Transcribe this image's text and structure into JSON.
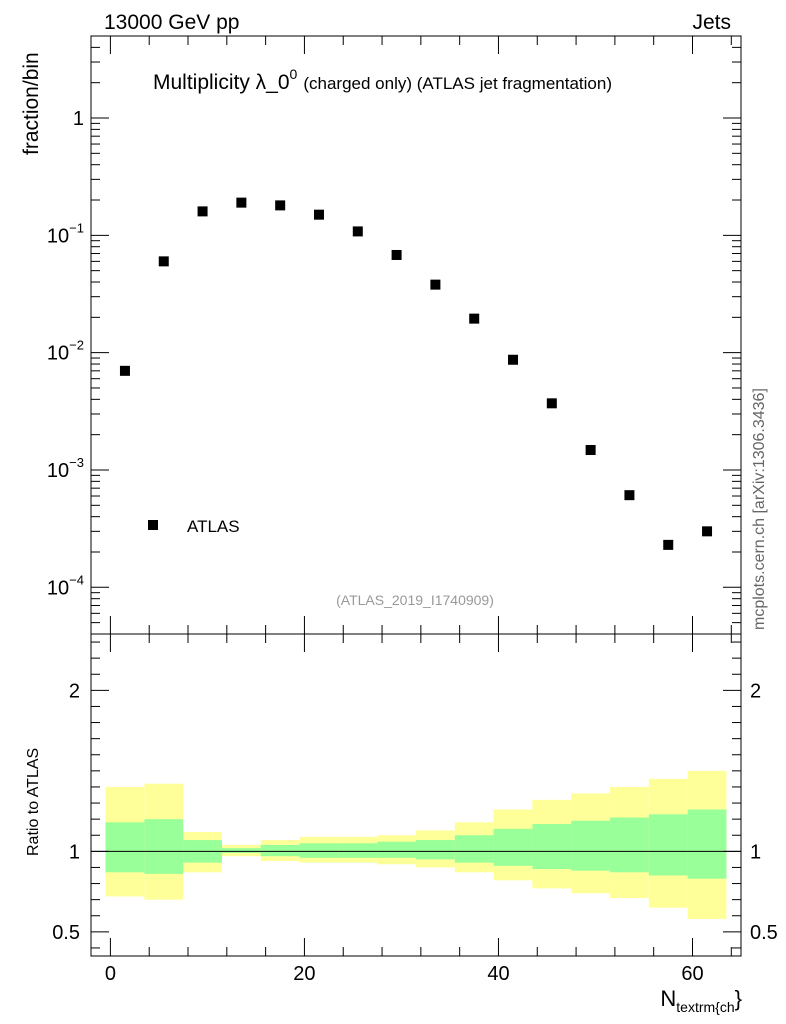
{
  "header": {
    "left_label": "13000 GeV pp",
    "right_label": "Jets",
    "side_label": "mcplots.cern.ch [arXiv:1306.3436]"
  },
  "chart_data": [
    {
      "type": "scatter",
      "title": {
        "main": "Multiplicity λ_0",
        "superscript": "0",
        "suffix": "(charged only) (ATLAS jet fragmentation)"
      },
      "ylabel": "fraction/bin",
      "y_scale": "log",
      "ylim": [
        4e-05,
        5
      ],
      "xlim": [
        -2,
        65
      ],
      "y_ticks": [
        {
          "value": 1,
          "base": "1",
          "exp": ""
        },
        {
          "value": 0.1,
          "base": "10",
          "exp": "−1"
        },
        {
          "value": 0.01,
          "base": "10",
          "exp": "−2"
        },
        {
          "value": 0.001,
          "base": "10",
          "exp": "−3"
        },
        {
          "value": 0.0001,
          "base": "10",
          "exp": "−4"
        }
      ],
      "legend": {
        "position": "bottom-left",
        "entries": [
          "ATLAS"
        ]
      },
      "series": [
        {
          "name": "ATLAS",
          "x": [
            1.5,
            5.5,
            9.5,
            13.5,
            17.5,
            21.5,
            25.5,
            29.5,
            33.5,
            37.5,
            41.5,
            45.5,
            49.5,
            53.5,
            57.5,
            61.5
          ],
          "y": [
            0.007,
            0.06,
            0.16,
            0.19,
            0.18,
            0.15,
            0.108,
            0.068,
            0.038,
            0.0195,
            0.0087,
            0.0037,
            0.00148,
            0.00061,
            0.00023,
            0.0003
          ]
        }
      ],
      "annotation": "(ATLAS_2019_I1740909)"
    },
    {
      "type": "area",
      "ylabel": "Ratio to ATLAS",
      "ylim": [
        0.35,
        2.35
      ],
      "xlim": [
        -2,
        65
      ],
      "x_ticks": [
        0,
        20,
        40,
        60
      ],
      "y_ticks": [
        0.5,
        1,
        2
      ],
      "xlabel": {
        "main": "N",
        "subscript": "textrm{ch",
        "suffix": "}"
      },
      "reference_line": 1,
      "bands": {
        "edges": [
          -0.5,
          3.5,
          7.5,
          11.5,
          15.5,
          19.5,
          23.5,
          27.5,
          31.5,
          35.5,
          39.5,
          43.5,
          47.5,
          51.5,
          55.5,
          59.5,
          63.5
        ],
        "yellow_low": [
          0.72,
          0.7,
          0.87,
          0.97,
          0.94,
          0.93,
          0.93,
          0.92,
          0.9,
          0.87,
          0.82,
          0.77,
          0.74,
          0.71,
          0.65,
          0.58
        ],
        "yellow_high": [
          1.4,
          1.42,
          1.12,
          1.04,
          1.07,
          1.09,
          1.09,
          1.1,
          1.13,
          1.18,
          1.26,
          1.32,
          1.36,
          1.4,
          1.45,
          1.5
        ],
        "green_low": [
          0.87,
          0.86,
          0.93,
          0.99,
          0.97,
          0.96,
          0.96,
          0.96,
          0.95,
          0.93,
          0.91,
          0.89,
          0.88,
          0.87,
          0.85,
          0.83
        ],
        "green_high": [
          1.18,
          1.2,
          1.07,
          1.02,
          1.04,
          1.05,
          1.05,
          1.06,
          1.07,
          1.1,
          1.14,
          1.17,
          1.19,
          1.21,
          1.23,
          1.26
        ]
      },
      "colors": {
        "yellow_band": "#ffff99",
        "green_band": "#99ff99",
        "reference": "#000000"
      }
    }
  ]
}
